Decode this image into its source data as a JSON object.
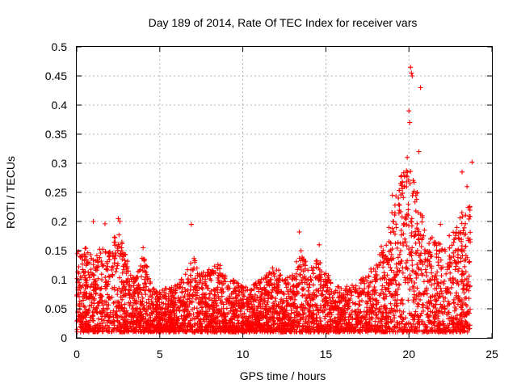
{
  "chart_data": {
    "type": "scatter",
    "title": "Day 189 of 2014, Rate Of TEC Index for receiver vars",
    "xlabel": "GPS time / hours",
    "ylabel": "ROTI / TECUs",
    "xlim": [
      0,
      25
    ],
    "ylim": [
      0,
      0.5
    ],
    "xticks": [
      0,
      5,
      10,
      15,
      20,
      25
    ],
    "yticks": [
      0,
      0.05,
      0.1,
      0.15,
      0.2,
      0.25,
      0.3,
      0.35,
      0.4,
      0.45,
      0.5
    ],
    "xtick_labels": [
      "0",
      "5",
      "10",
      "15",
      "20",
      "25"
    ],
    "ytick_labels": [
      "0",
      "0.05",
      "0.1",
      "0.15",
      "0.2",
      "0.25",
      "0.3",
      "0.35",
      "0.4",
      "0.45",
      "0.5"
    ],
    "grid": true,
    "marker": "+",
    "series_color": "#ff0000",
    "data_range_x": [
      0,
      23.7
    ],
    "envelope": [
      [
        0.0,
        0.15
      ],
      [
        0.5,
        0.16
      ],
      [
        1.0,
        0.14
      ],
      [
        1.5,
        0.16
      ],
      [
        2.0,
        0.15
      ],
      [
        2.5,
        0.2
      ],
      [
        3.0,
        0.14
      ],
      [
        3.5,
        0.1
      ],
      [
        4.0,
        0.15
      ],
      [
        4.5,
        0.09
      ],
      [
        5.0,
        0.08
      ],
      [
        5.5,
        0.09
      ],
      [
        6.0,
        0.09
      ],
      [
        6.5,
        0.11
      ],
      [
        7.0,
        0.14
      ],
      [
        7.5,
        0.11
      ],
      [
        8.0,
        0.12
      ],
      [
        8.5,
        0.13
      ],
      [
        9.0,
        0.11
      ],
      [
        9.5,
        0.1
      ],
      [
        10.0,
        0.09
      ],
      [
        10.5,
        0.09
      ],
      [
        11.0,
        0.1
      ],
      [
        11.5,
        0.11
      ],
      [
        12.0,
        0.13
      ],
      [
        12.5,
        0.1
      ],
      [
        13.0,
        0.11
      ],
      [
        13.5,
        0.17
      ],
      [
        14.0,
        0.11
      ],
      [
        14.5,
        0.15
      ],
      [
        15.0,
        0.12
      ],
      [
        15.5,
        0.09
      ],
      [
        16.0,
        0.09
      ],
      [
        16.5,
        0.09
      ],
      [
        17.0,
        0.1
      ],
      [
        17.5,
        0.11
      ],
      [
        18.0,
        0.13
      ],
      [
        18.5,
        0.18
      ],
      [
        19.0,
        0.22
      ],
      [
        19.5,
        0.28
      ],
      [
        20.0,
        0.3
      ],
      [
        20.5,
        0.25
      ],
      [
        21.0,
        0.19
      ],
      [
        21.5,
        0.17
      ],
      [
        22.0,
        0.16
      ],
      [
        22.5,
        0.18
      ],
      [
        23.0,
        0.21
      ],
      [
        23.7,
        0.23
      ]
    ],
    "notable_points": [
      [
        1.0,
        0.2
      ],
      [
        1.7,
        0.196
      ],
      [
        2.5,
        0.205
      ],
      [
        2.6,
        0.2
      ],
      [
        6.9,
        0.195
      ],
      [
        4.0,
        0.155
      ],
      [
        13.4,
        0.182
      ],
      [
        14.6,
        0.16
      ],
      [
        19.0,
        0.245
      ],
      [
        19.5,
        0.265
      ],
      [
        19.9,
        0.31
      ],
      [
        20.0,
        0.39
      ],
      [
        20.05,
        0.37
      ],
      [
        20.1,
        0.465
      ],
      [
        20.15,
        0.455
      ],
      [
        20.2,
        0.45
      ],
      [
        20.5,
        0.25
      ],
      [
        20.6,
        0.32
      ],
      [
        20.7,
        0.43
      ],
      [
        20.8,
        0.21
      ],
      [
        23.2,
        0.285
      ],
      [
        23.8,
        0.302
      ],
      [
        23.5,
        0.26
      ],
      [
        21.9,
        0.195
      ]
    ],
    "points_rendered": 4200
  }
}
